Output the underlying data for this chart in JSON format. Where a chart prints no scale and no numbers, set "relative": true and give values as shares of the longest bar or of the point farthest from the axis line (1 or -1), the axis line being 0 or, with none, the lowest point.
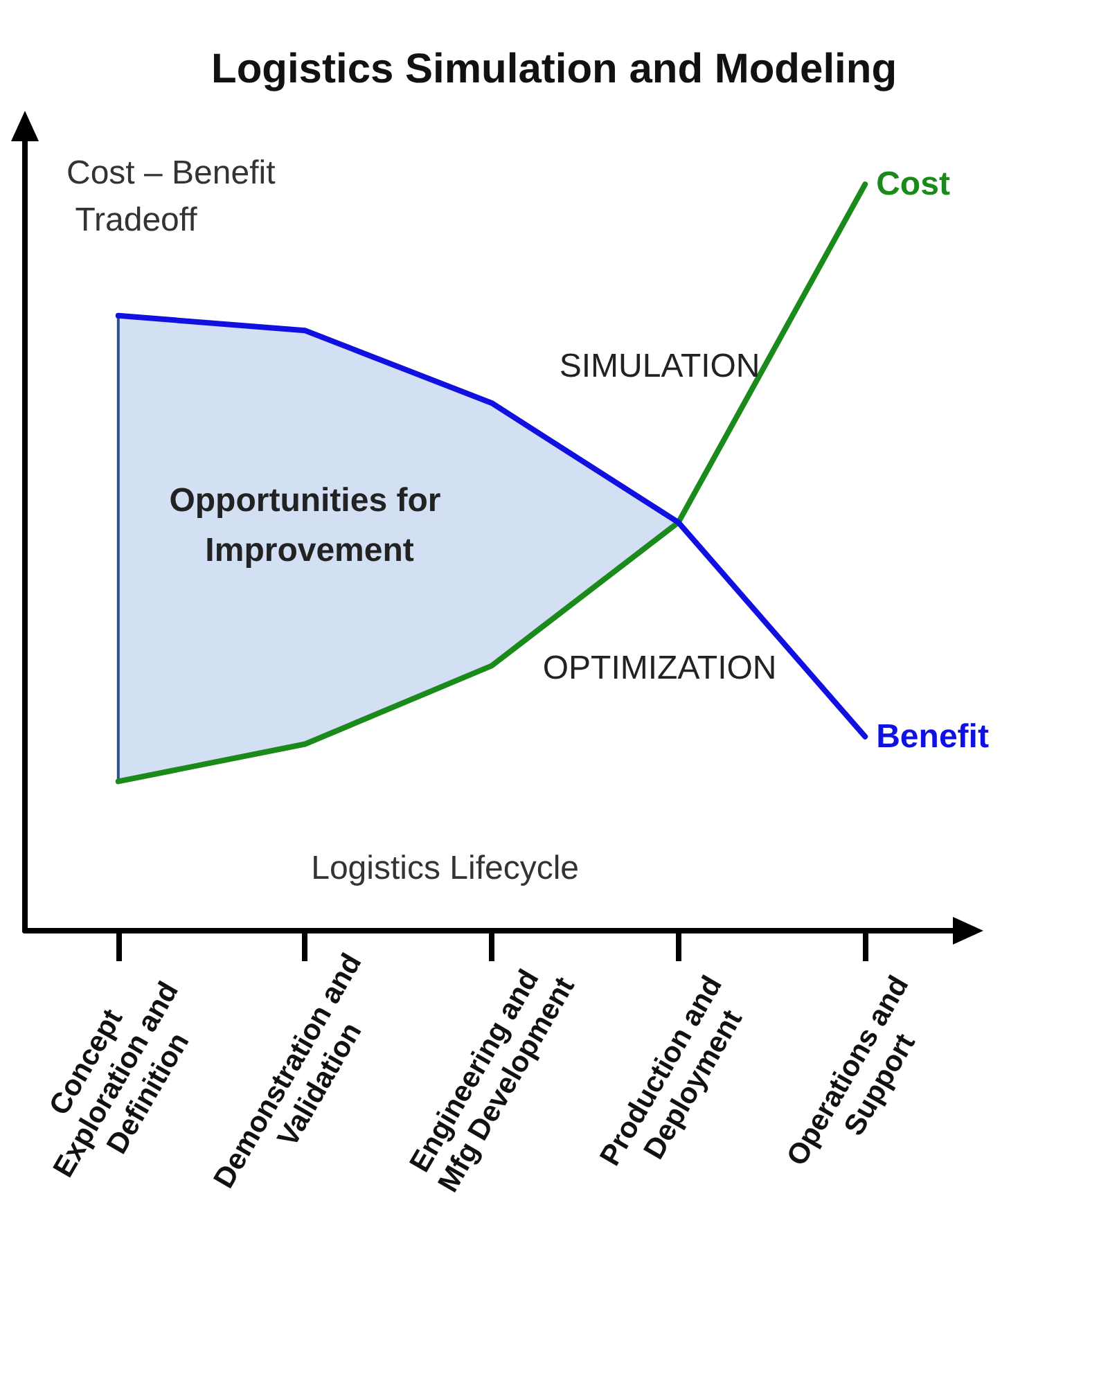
{
  "chart_data": {
    "type": "line",
    "title": "Logistics Simulation and Modeling",
    "xlabel": "Logistics Lifecycle",
    "ylabel": "Cost – Benefit Tradeoff",
    "relative": true,
    "categories": [
      "Concept Exploration and Definition",
      "Demonstration and Validation",
      "Engineering and Mfg Development",
      "Production and Deployment",
      "Operations and Support"
    ],
    "series": [
      {
        "name": "Cost",
        "color": "#1a8a1a",
        "values": [
          0.2,
          0.25,
          0.355,
          0.547,
          1.0
        ]
      },
      {
        "name": "Benefit",
        "color": "#1010e0",
        "values": [
          0.824,
          0.804,
          0.707,
          0.547,
          0.26
        ],
        "lower": [
          0.2,
          0.25,
          0.355,
          0.547,
          null
        ],
        "upper": [
          0.824,
          0.804,
          0.707,
          0.547,
          null
        ]
      }
    ],
    "annotations": [
      "SIMULATION",
      "OPTIMIZATION",
      "Opportunities for Improvement"
    ],
    "legend": false,
    "grid": false,
    "marker": "none",
    "line_style": "solid"
  }
}
